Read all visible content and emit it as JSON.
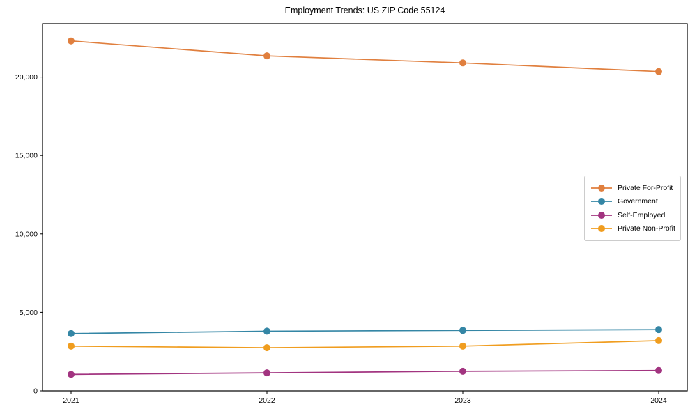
{
  "chart_data": {
    "type": "line",
    "title": "Employment Trends: US ZIP Code 55124",
    "categories": [
      "2021",
      "2022",
      "2023",
      "2024"
    ],
    "x": [
      2021,
      2022,
      2023,
      2024
    ],
    "series": [
      {
        "name": "Private For-Profit",
        "color": "#e07f3e",
        "values": [
          22300,
          21350,
          20900,
          20350
        ]
      },
      {
        "name": "Government",
        "color": "#3486a5",
        "values": [
          3650,
          3800,
          3850,
          3900
        ]
      },
      {
        "name": "Self-Employed",
        "color": "#a23480",
        "values": [
          1050,
          1150,
          1250,
          1300
        ]
      },
      {
        "name": "Private Non-Profit",
        "color": "#f09d1f",
        "values": [
          2850,
          2750,
          2850,
          3200
        ]
      }
    ],
    "xlabel": "",
    "ylabel": "",
    "ylim": [
      0,
      23400
    ],
    "yticks": [
      {
        "value": 0,
        "label": "0"
      },
      {
        "value": 5000,
        "label": "5,000"
      },
      {
        "value": 10000,
        "label": "10,000"
      },
      {
        "value": 15000,
        "label": "15,000"
      },
      {
        "value": 20000,
        "label": "20,000"
      }
    ],
    "grid": false,
    "legend_position": "center-right",
    "marker": "circle",
    "axis_color": "#000000",
    "background_color": "#ffffff"
  }
}
